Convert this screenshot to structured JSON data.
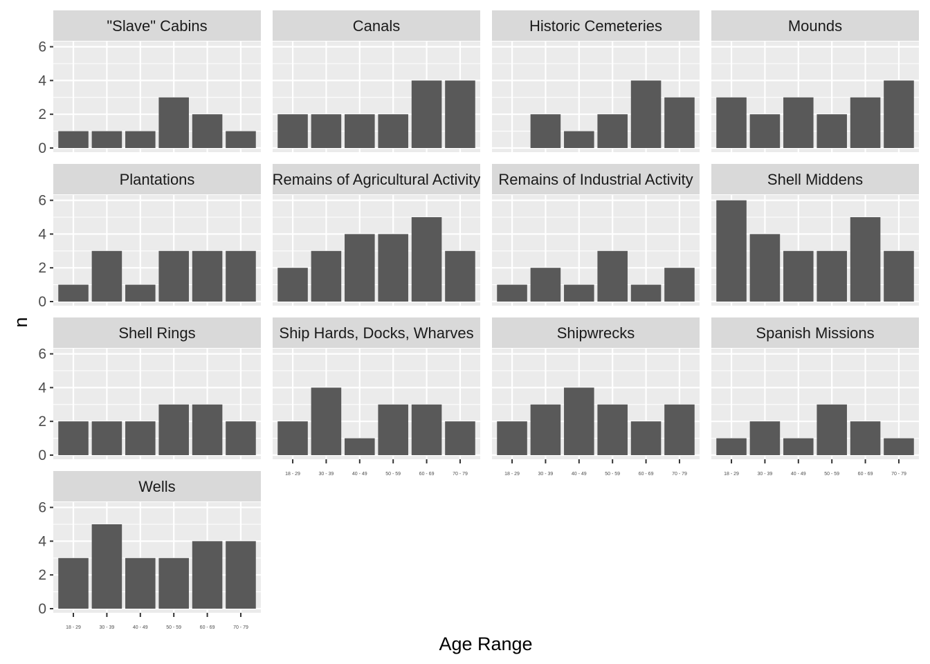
{
  "chart_data": {
    "type": "bar",
    "facet_layout": "wrap, 4 columns",
    "xlabel": "Age Range",
    "ylabel": "n",
    "categories": [
      "18 - 29",
      "30 - 39",
      "40 - 49",
      "50 - 59",
      "60 - 69",
      "70 - 79"
    ],
    "ylim": [
      0,
      6.8
    ],
    "yticks": [
      0,
      2,
      4,
      6
    ],
    "bar_color": "#595959",
    "panel_background": "#ebebeb",
    "strip_background": "#d9d9d9",
    "grid": true,
    "panels": [
      {
        "title": "\"Slave\" Cabins",
        "values": [
          1,
          1,
          1,
          3,
          2,
          1
        ]
      },
      {
        "title": "Canals",
        "values": [
          2,
          2,
          2,
          2,
          4,
          4
        ]
      },
      {
        "title": "Historic Cemeteries",
        "values": [
          0,
          2,
          1,
          2,
          4,
          3
        ]
      },
      {
        "title": "Mounds",
        "values": [
          3,
          2,
          3,
          2,
          3,
          4
        ]
      },
      {
        "title": "Plantations",
        "values": [
          1,
          3,
          1,
          3,
          3,
          3
        ]
      },
      {
        "title": "Remains of Agricultural Activity",
        "values": [
          2,
          3,
          4,
          4,
          5,
          3
        ]
      },
      {
        "title": "Remains of Industrial Activity",
        "values": [
          1,
          2,
          1,
          3,
          1,
          2
        ]
      },
      {
        "title": "Shell Middens",
        "values": [
          6,
          4,
          3,
          3,
          5,
          3
        ]
      },
      {
        "title": "Shell Rings",
        "values": [
          2,
          2,
          2,
          3,
          3,
          2
        ]
      },
      {
        "title": "Ship Hards, Docks, Wharves",
        "values": [
          2,
          4,
          1,
          3,
          3,
          2
        ]
      },
      {
        "title": "Shipwrecks",
        "values": [
          2,
          3,
          4,
          3,
          2,
          3
        ]
      },
      {
        "title": "Spanish Missions",
        "values": [
          1,
          2,
          1,
          3,
          2,
          1
        ]
      },
      {
        "title": "Wells",
        "values": [
          3,
          5,
          3,
          3,
          4,
          4
        ]
      }
    ]
  }
}
